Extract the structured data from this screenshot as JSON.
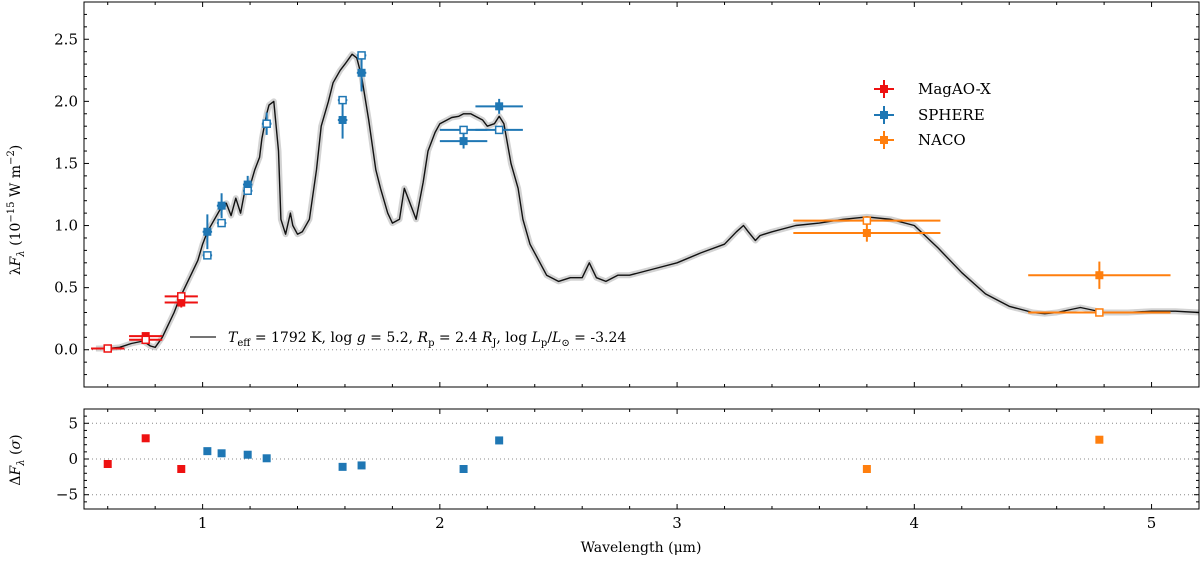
{
  "chart_data": [
    {
      "type": "line",
      "role": "main",
      "xlim": [
        0.5,
        5.2
      ],
      "ylim": [
        -0.3,
        2.8
      ],
      "x_ticks": [
        1,
        2,
        3,
        4,
        5
      ],
      "x_tick_labels": [
        "1",
        "2",
        "3",
        "4",
        "5"
      ],
      "y_ticks": [
        0.0,
        0.5,
        1.0,
        1.5,
        2.0,
        2.5
      ],
      "y_tick_labels": [
        "0.0",
        "0.5",
        "1.0",
        "1.5",
        "2.0",
        "2.5"
      ],
      "ylabel": "λF_λ (10^−15 W m^−2)",
      "ylabel_parts": {
        "pre": "λ",
        "F": "F",
        "sub": "λ",
        "open": " (10",
        "exp": "−15",
        "mid": " W m",
        "exp2": "−2",
        "close": ")"
      },
      "model_label": {
        "teff": "T",
        "teff_sub": "eff",
        "teff_val": " = 1792 K, log ",
        "g": "g",
        "g_val": " = 5.2, ",
        "r": "R",
        "r_sub": "p",
        "r_val": " = 2.4 ",
        "rj": "R",
        "rj_sub": "J",
        "l_pre": ", log ",
        "l": "L",
        "l_sub": "p",
        "slash": "/",
        "lsun": "L",
        "lsun_sub": "⊙",
        "l_val": " = -3.24"
      },
      "model_spectrum": {
        "x": [
          0.55,
          0.6,
          0.65,
          0.7,
          0.75,
          0.78,
          0.8,
          0.83,
          0.85,
          0.88,
          0.9,
          0.93,
          0.95,
          0.98,
          1.0,
          1.02,
          1.05,
          1.08,
          1.1,
          1.12,
          1.14,
          1.16,
          1.18,
          1.2,
          1.22,
          1.24,
          1.25,
          1.27,
          1.28,
          1.3,
          1.32,
          1.33,
          1.35,
          1.37,
          1.38,
          1.4,
          1.42,
          1.45,
          1.48,
          1.5,
          1.53,
          1.55,
          1.58,
          1.6,
          1.63,
          1.65,
          1.67,
          1.7,
          1.73,
          1.75,
          1.78,
          1.8,
          1.83,
          1.85,
          1.88,
          1.9,
          1.93,
          1.95,
          1.98,
          2.0,
          2.03,
          2.05,
          2.08,
          2.1,
          2.13,
          2.15,
          2.18,
          2.2,
          2.23,
          2.25,
          2.27,
          2.3,
          2.33,
          2.35,
          2.38,
          2.4,
          2.45,
          2.5,
          2.55,
          2.6,
          2.63,
          2.66,
          2.7,
          2.75,
          2.8,
          2.9,
          3.0,
          3.1,
          3.2,
          3.25,
          3.28,
          3.3,
          3.33,
          3.35,
          3.4,
          3.5,
          3.6,
          3.7,
          3.8,
          3.9,
          4.0,
          4.1,
          4.2,
          4.3,
          4.4,
          4.5,
          4.55,
          4.6,
          4.65,
          4.7,
          4.75,
          4.8,
          4.9,
          5.0,
          5.1,
          5.2
        ],
        "y": [
          0.01,
          0.01,
          0.02,
          0.05,
          0.07,
          0.03,
          0.02,
          0.1,
          0.18,
          0.3,
          0.4,
          0.52,
          0.6,
          0.72,
          0.85,
          0.95,
          1.05,
          1.15,
          1.18,
          1.08,
          1.22,
          1.1,
          1.3,
          1.32,
          1.45,
          1.55,
          1.7,
          1.9,
          1.97,
          2.0,
          1.6,
          1.05,
          0.93,
          1.1,
          1.0,
          0.93,
          0.95,
          1.05,
          1.45,
          1.8,
          2.0,
          2.15,
          2.25,
          2.3,
          2.38,
          2.35,
          2.2,
          1.85,
          1.45,
          1.3,
          1.1,
          1.02,
          1.05,
          1.3,
          1.15,
          1.05,
          1.35,
          1.6,
          1.75,
          1.82,
          1.85,
          1.87,
          1.88,
          1.9,
          1.9,
          1.88,
          1.85,
          1.8,
          1.82,
          1.88,
          1.82,
          1.5,
          1.3,
          1.05,
          0.85,
          0.78,
          0.6,
          0.55,
          0.58,
          0.58,
          0.7,
          0.58,
          0.55,
          0.6,
          0.6,
          0.65,
          0.7,
          0.78,
          0.85,
          0.95,
          1.0,
          0.95,
          0.88,
          0.92,
          0.95,
          1.0,
          1.02,
          1.05,
          1.07,
          1.05,
          1.0,
          0.82,
          0.62,
          0.45,
          0.35,
          0.3,
          0.29,
          0.3,
          0.32,
          0.34,
          0.32,
          0.3,
          0.3,
          0.31,
          0.31,
          0.3
        ]
      },
      "series": [
        {
          "name": "MagAO-X",
          "color": "#ee1111",
          "points": [
            {
              "x": 0.6,
              "y": 0.01,
              "xerr": 0.07,
              "yerr": 0.01,
              "model": 0.01
            },
            {
              "x": 0.76,
              "y": 0.11,
              "xerr": 0.07,
              "yerr": 0.02,
              "model": 0.08
            },
            {
              "x": 0.91,
              "y": 0.38,
              "xerr": 0.07,
              "yerr": 0.04,
              "model": 0.43
            }
          ]
        },
        {
          "name": "SPHERE",
          "color": "#1f77b4",
          "points": [
            {
              "x": 1.02,
              "y": 0.95,
              "xerr": 0.02,
              "yerr": 0.14,
              "model": 0.76
            },
            {
              "x": 1.08,
              "y": 1.16,
              "xerr": 0.02,
              "yerr": 0.1,
              "model": 1.02
            },
            {
              "x": 1.19,
              "y": 1.33,
              "xerr": 0.02,
              "yerr": 0.07,
              "model": 1.28
            },
            {
              "x": 1.27,
              "y": 1.82,
              "xerr": 0.02,
              "yerr": 0.09,
              "model": 1.82
            },
            {
              "x": 1.59,
              "y": 1.85,
              "xerr": 0.02,
              "yerr": 0.15,
              "model": 2.01
            },
            {
              "x": 1.67,
              "y": 2.23,
              "xerr": 0.02,
              "yerr": 0.15,
              "model": 2.37
            },
            {
              "x": 2.1,
              "y": 1.68,
              "xerr": 0.1,
              "yerr": 0.06,
              "model": 1.77
            },
            {
              "x": 2.25,
              "y": 1.96,
              "xerr": 0.1,
              "yerr": 0.06,
              "model": 1.77
            }
          ]
        },
        {
          "name": "NACO",
          "color": "#ff7f0e",
          "points": [
            {
              "x": 3.8,
              "y": 0.94,
              "xerr": 0.31,
              "yerr": 0.07,
              "model": 1.04
            },
            {
              "x": 4.78,
              "y": 0.6,
              "xerr": 0.3,
              "yerr": 0.11,
              "model": 0.3
            }
          ]
        }
      ],
      "legend": {
        "location": "upper right",
        "entries": [
          "MagAO-X",
          "SPHERE",
          "NACO"
        ]
      }
    },
    {
      "type": "scatter",
      "role": "residuals",
      "xlabel": "Wavelength (μm)",
      "ylabel": "ΔF_λ (σ)",
      "ylabel_parts": {
        "pre": "Δ",
        "F": "F",
        "sub": "λ",
        "open": " (",
        "sigma": "σ",
        "close": ")"
      },
      "xlim": [
        0.5,
        5.2
      ],
      "ylim": [
        -7,
        7
      ],
      "y_ticks": [
        -5,
        0,
        5
      ],
      "y_tick_labels": [
        "−5",
        "0",
        "5"
      ],
      "points": [
        {
          "x": 0.6,
          "y": -0.7,
          "series": "MagAO-X"
        },
        {
          "x": 0.76,
          "y": 2.9,
          "series": "MagAO-X"
        },
        {
          "x": 0.91,
          "y": -1.4,
          "series": "MagAO-X"
        },
        {
          "x": 1.02,
          "y": 1.1,
          "series": "SPHERE"
        },
        {
          "x": 1.08,
          "y": 0.8,
          "series": "SPHERE"
        },
        {
          "x": 1.19,
          "y": 0.6,
          "series": "SPHERE"
        },
        {
          "x": 1.27,
          "y": 0.1,
          "series": "SPHERE"
        },
        {
          "x": 1.59,
          "y": -1.1,
          "series": "SPHERE"
        },
        {
          "x": 1.67,
          "y": -0.9,
          "series": "SPHERE"
        },
        {
          "x": 2.1,
          "y": -1.4,
          "series": "SPHERE"
        },
        {
          "x": 2.25,
          "y": 2.6,
          "series": "SPHERE"
        },
        {
          "x": 3.8,
          "y": -1.4,
          "series": "NACO"
        },
        {
          "x": 4.78,
          "y": 2.7,
          "series": "NACO"
        }
      ]
    }
  ]
}
